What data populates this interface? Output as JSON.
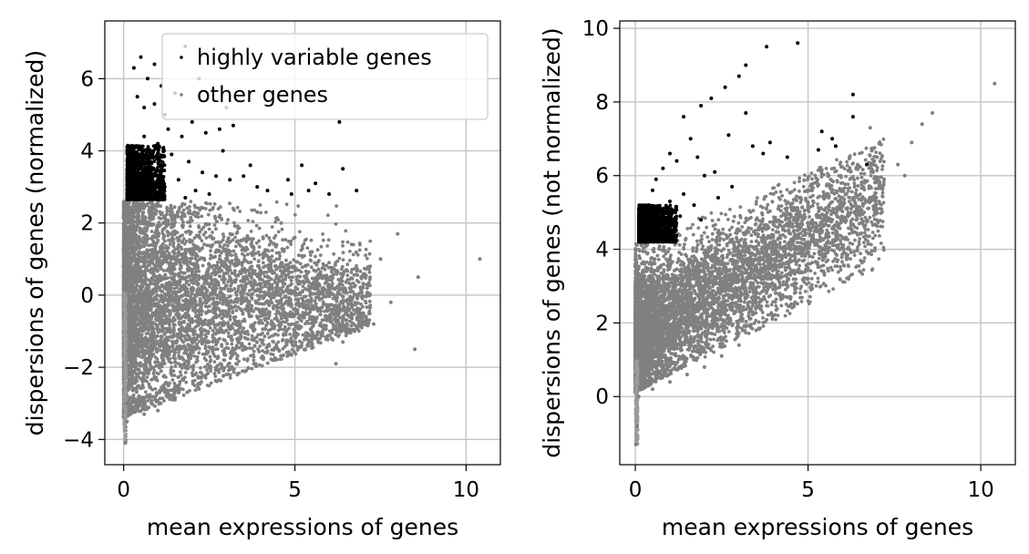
{
  "chart_data": [
    {
      "type": "scatter",
      "xlabel": "mean expressions of genes",
      "ylabel": "dispersions of genes (normalized)",
      "xlim": [
        -0.55,
        11.0
      ],
      "ylim": [
        -4.7,
        7.6
      ],
      "xticks": [
        0,
        5,
        10
      ],
      "yticks": [
        -4,
        -2,
        0,
        2,
        4,
        6
      ],
      "grid": true,
      "legend": {
        "placement": "top-right",
        "entries": [
          {
            "label": "highly variable genes",
            "color": "#000000"
          },
          {
            "label": "other genes",
            "color": "#808080"
          }
        ]
      },
      "series": [
        {
          "name": "highly variable genes",
          "color": "#000000",
          "points": [
            [
              0.3,
              6.3
            ],
            [
              0.5,
              6.6
            ],
            [
              0.7,
              6.0
            ],
            [
              0.9,
              6.4
            ],
            [
              1.1,
              5.8
            ],
            [
              0.4,
              5.5
            ],
            [
              0.6,
              5.2
            ],
            [
              0.9,
              5.3
            ],
            [
              1.2,
              5.0
            ],
            [
              1.5,
              5.6
            ],
            [
              1.8,
              6.9
            ],
            [
              2.2,
              6.0
            ],
            [
              2.6,
              5.7
            ],
            [
              3.0,
              5.2
            ],
            [
              1.3,
              4.6
            ],
            [
              1.7,
              4.4
            ],
            [
              2.0,
              4.8
            ],
            [
              2.4,
              4.5
            ],
            [
              2.8,
              4.6
            ],
            [
              3.2,
              4.7
            ],
            [
              1.0,
              4.2
            ],
            [
              1.4,
              3.9
            ],
            [
              1.9,
              3.7
            ],
            [
              2.3,
              3.4
            ],
            [
              2.7,
              3.3
            ],
            [
              3.1,
              3.2
            ],
            [
              3.5,
              3.3
            ],
            [
              3.9,
              3.0
            ],
            [
              4.2,
              2.9
            ],
            [
              4.8,
              3.2
            ],
            [
              5.2,
              3.6
            ],
            [
              5.6,
              3.1
            ],
            [
              6.0,
              2.8
            ],
            [
              6.3,
              4.8
            ],
            [
              6.4,
              3.5
            ],
            [
              6.8,
              2.9
            ],
            [
              4.9,
              2.8
            ],
            [
              5.4,
              2.9
            ],
            [
              3.7,
              3.6
            ],
            [
              2.9,
              4.0
            ],
            [
              1.6,
              3.2
            ],
            [
              1.2,
              3.0
            ],
            [
              0.8,
              3.4
            ],
            [
              0.5,
              3.1
            ],
            [
              2.1,
              2.9
            ],
            [
              2.5,
              2.8
            ],
            [
              1.8,
              2.7
            ],
            [
              0.6,
              4.4
            ],
            [
              0.8,
              3.9
            ],
            [
              0.3,
              4.1
            ]
          ]
        },
        {
          "name": "other genes",
          "color": "#808080",
          "points": [
            [
              10.4,
              1.0
            ],
            [
              8.6,
              0.5
            ],
            [
              8.0,
              1.7
            ],
            [
              7.5,
              1.0
            ],
            [
              8.5,
              -1.5
            ],
            [
              6.2,
              -1.9
            ],
            [
              7.0,
              -0.5
            ],
            [
              7.8,
              -0.2
            ],
            [
              7.2,
              0.8
            ],
            [
              6.6,
              0.2
            ],
            [
              6.9,
              1.4
            ],
            [
              7.3,
              -0.8
            ],
            [
              5.8,
              -1.0
            ],
            [
              6.4,
              -1.3
            ],
            [
              4.5,
              -1.5
            ],
            [
              3.8,
              -1.9
            ],
            [
              3.0,
              -2.2
            ],
            [
              2.2,
              -2.6
            ],
            [
              1.5,
              -2.9
            ],
            [
              1.0,
              -3.2
            ],
            [
              0.6,
              -3.3
            ],
            [
              5.0,
              1.6
            ],
            [
              4.6,
              2.0
            ],
            [
              3.9,
              2.3
            ],
            [
              3.2,
              2.4
            ],
            [
              5.5,
              1.2
            ],
            [
              6.0,
              0.9
            ],
            [
              6.8,
              0.0
            ],
            [
              4.0,
              -0.5
            ],
            [
              3.5,
              0.5
            ],
            [
              2.8,
              1.0
            ],
            [
              2.0,
              1.5
            ],
            [
              1.2,
              2.0
            ],
            [
              0.8,
              0.0
            ],
            [
              0.4,
              -1.0
            ],
            [
              0.2,
              -2.0
            ],
            [
              0.15,
              -2.6
            ],
            [
              0.1,
              -3.5
            ],
            [
              0.05,
              -4.1
            ],
            [
              0.08,
              -3.0
            ],
            [
              0.3,
              -3.1
            ],
            [
              0.45,
              -2.8
            ]
          ]
        }
      ]
    },
    {
      "type": "scatter",
      "xlabel": "mean expressions of genes",
      "ylabel": "dispersions of genes (not normalized)",
      "xlim": [
        -0.45,
        11.0
      ],
      "ylim": [
        -1.85,
        10.2
      ],
      "xticks": [
        0,
        5,
        10
      ],
      "yticks": [
        0,
        2,
        4,
        6,
        8,
        10
      ],
      "grid": true,
      "series": [
        {
          "name": "highly variable genes",
          "color": "#000000",
          "points": [
            [
              4.7,
              9.6
            ],
            [
              3.8,
              9.5
            ],
            [
              3.2,
              9.0
            ],
            [
              3.0,
              8.7
            ],
            [
              2.6,
              8.4
            ],
            [
              2.2,
              8.1
            ],
            [
              1.9,
              7.9
            ],
            [
              3.2,
              7.7
            ],
            [
              2.7,
              7.1
            ],
            [
              3.4,
              6.8
            ],
            [
              3.7,
              6.6
            ],
            [
              1.4,
              7.6
            ],
            [
              1.6,
              7.0
            ],
            [
              1.8,
              6.5
            ],
            [
              2.3,
              6.1
            ],
            [
              2.0,
              6.0
            ],
            [
              1.2,
              6.4
            ],
            [
              1.0,
              6.6
            ],
            [
              0.8,
              6.2
            ],
            [
              0.6,
              5.9
            ],
            [
              0.5,
              5.6
            ],
            [
              0.4,
              5.2
            ],
            [
              0.7,
              5.0
            ],
            [
              1.0,
              5.3
            ],
            [
              1.4,
              5.5
            ],
            [
              1.7,
              5.2
            ],
            [
              2.4,
              5.4
            ],
            [
              2.8,
              5.7
            ],
            [
              6.3,
              7.6
            ],
            [
              6.3,
              8.2
            ],
            [
              5.4,
              7.2
            ],
            [
              5.7,
              7.0
            ],
            [
              5.3,
              6.7
            ],
            [
              5.8,
              6.8
            ],
            [
              6.7,
              6.3
            ],
            [
              4.4,
              6.5
            ],
            [
              3.9,
              6.9
            ],
            [
              0.3,
              4.6
            ],
            [
              0.5,
              4.8
            ],
            [
              0.9,
              4.7
            ],
            [
              1.3,
              4.9
            ],
            [
              1.9,
              4.8
            ]
          ]
        },
        {
          "name": "other genes",
          "color": "#808080",
          "points": [
            [
              10.4,
              8.5
            ],
            [
              8.6,
              7.7
            ],
            [
              8.3,
              7.4
            ],
            [
              8.0,
              6.9
            ],
            [
              7.6,
              6.3
            ],
            [
              7.2,
              5.9
            ],
            [
              6.8,
              5.3
            ],
            [
              6.4,
              4.8
            ],
            [
              6.0,
              4.3
            ],
            [
              5.5,
              3.8
            ],
            [
              5.0,
              3.2
            ],
            [
              4.5,
              2.7
            ],
            [
              4.0,
              2.2
            ],
            [
              3.5,
              1.8
            ],
            [
              3.0,
              1.4
            ],
            [
              2.5,
              1.1
            ],
            [
              2.0,
              0.8
            ],
            [
              1.5,
              0.6
            ],
            [
              1.0,
              0.4
            ],
            [
              0.5,
              0.2
            ],
            [
              0.1,
              0.0
            ],
            [
              6.8,
              7.3
            ],
            [
              6.2,
              6.5
            ],
            [
              5.6,
              6.0
            ],
            [
              5.0,
              5.6
            ],
            [
              4.5,
              5.2
            ],
            [
              4.0,
              5.5
            ],
            [
              3.5,
              4.8
            ],
            [
              3.0,
              4.5
            ],
            [
              2.5,
              3.8
            ],
            [
              2.0,
              3.2
            ],
            [
              1.5,
              2.8
            ],
            [
              1.0,
              2.2
            ],
            [
              0.5,
              1.5
            ],
            [
              0.3,
              3.0
            ],
            [
              0.1,
              2.0
            ],
            [
              0.05,
              -0.8
            ],
            [
              0.02,
              -1.3
            ],
            [
              7.8,
              6.0
            ],
            [
              7.0,
              6.5
            ],
            [
              6.0,
              5.8
            ],
            [
              5.2,
              4.6
            ]
          ]
        }
      ]
    }
  ]
}
